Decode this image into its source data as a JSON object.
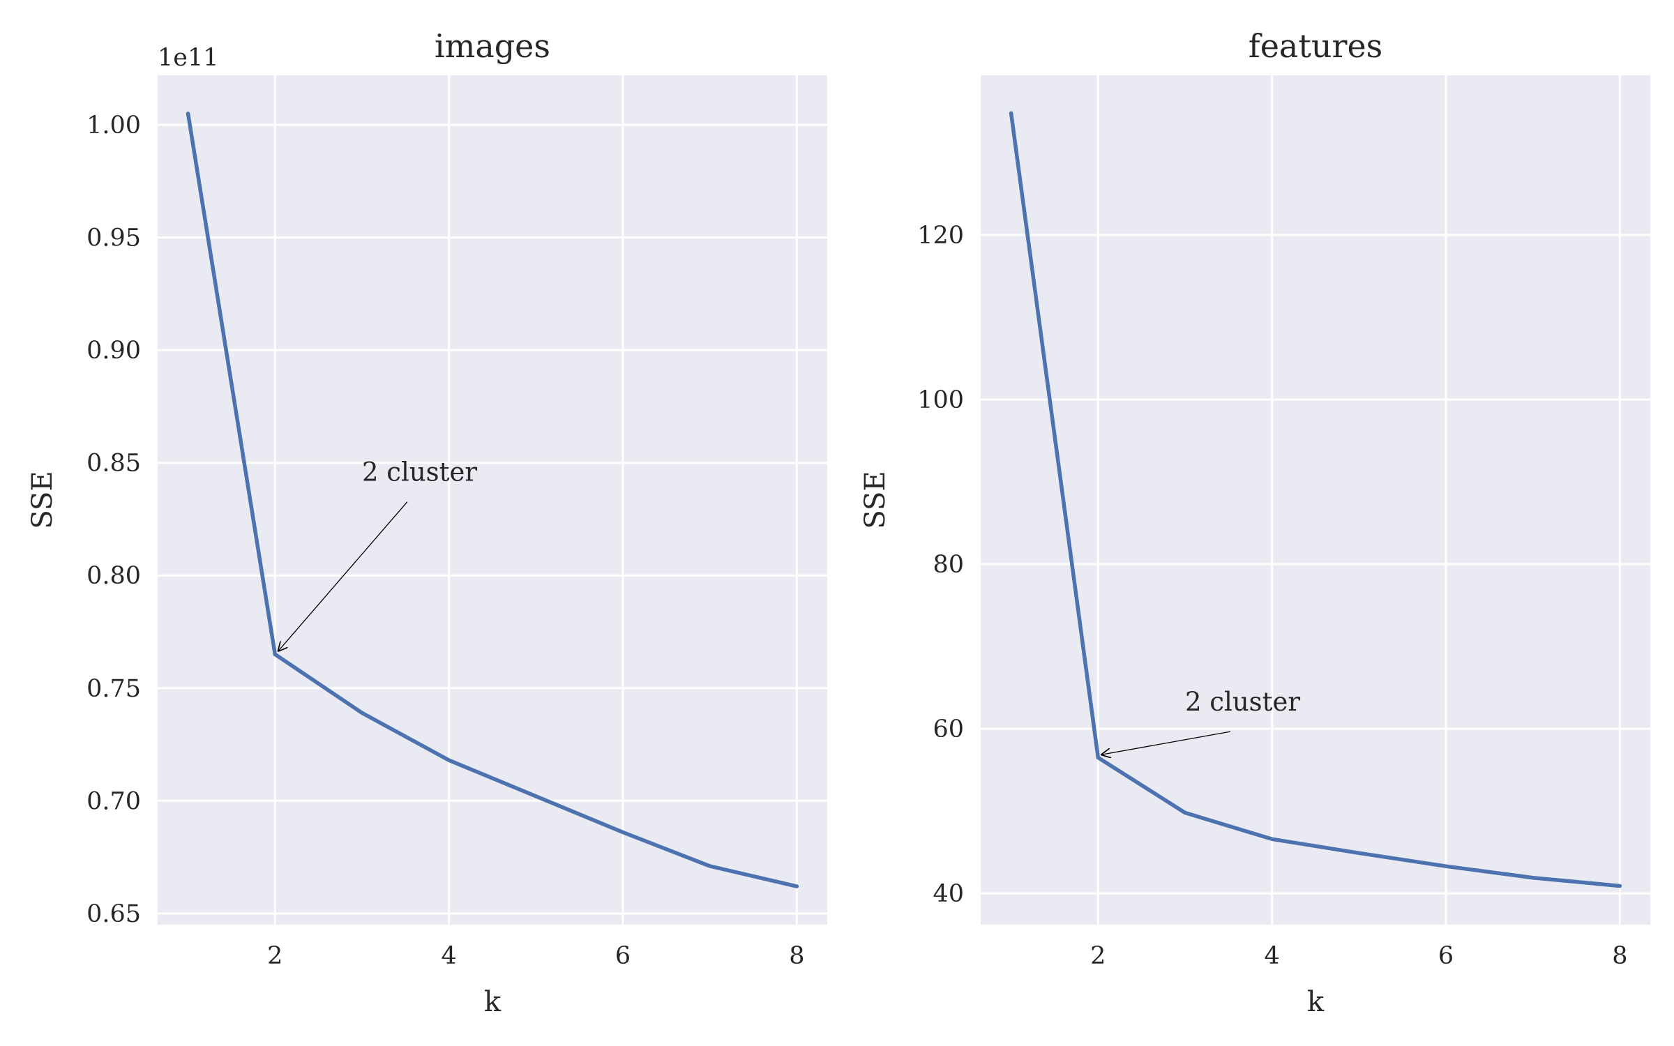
{
  "chart_data": [
    {
      "type": "line",
      "title": "images",
      "xlabel": "k",
      "ylabel": "SSE",
      "y_offset_label": "1e11",
      "x": [
        1,
        2,
        3,
        4,
        5,
        6,
        7,
        8
      ],
      "series": [
        {
          "name": "SSE",
          "color": "#4c72b0",
          "values": [
            1.005,
            0.765,
            0.739,
            0.718,
            0.702,
            0.686,
            0.671,
            0.662
          ]
        }
      ],
      "xlim": [
        0.65,
        8.35
      ],
      "ylim": [
        0.645,
        1.022
      ],
      "xticks": [
        2,
        4,
        6,
        8
      ],
      "xtick_labels": [
        "2",
        "4",
        "6",
        "8"
      ],
      "yticks": [
        0.65,
        0.7,
        0.75,
        0.8,
        0.85,
        0.9,
        0.95,
        1.0
      ],
      "ytick_labels": [
        "0.65",
        "0.70",
        "0.75",
        "0.80",
        "0.85",
        "0.90",
        "0.95",
        "1.00"
      ],
      "annotation": {
        "text": "2 cluster",
        "point": [
          2,
          0.765
        ],
        "text_at": [
          3,
          0.842
        ]
      }
    },
    {
      "type": "line",
      "title": "features",
      "xlabel": "k",
      "ylabel": "SSE",
      "x": [
        1,
        2,
        3,
        4,
        5,
        6,
        7,
        8
      ],
      "series": [
        {
          "name": "SSE",
          "color": "#4c72b0",
          "values": [
            134.8,
            56.5,
            49.8,
            46.6,
            44.9,
            43.3,
            41.9,
            40.9
          ]
        }
      ],
      "xlim": [
        0.65,
        8.35
      ],
      "ylim": [
        36.2,
        139.4
      ],
      "xticks": [
        2,
        4,
        6,
        8
      ],
      "xtick_labels": [
        "2",
        "4",
        "6",
        "8"
      ],
      "yticks": [
        40,
        60,
        80,
        100,
        120
      ],
      "ytick_labels": [
        "40",
        "60",
        "80",
        "100",
        "120"
      ],
      "annotation": {
        "text": "2 cluster",
        "point": [
          2,
          56.5
        ],
        "text_at": [
          3,
          62.2
        ]
      }
    }
  ],
  "style": {
    "axes_bg": "#eaeaf2",
    "grid": "#ffffff",
    "line": "#4c72b0",
    "text": "#262626"
  }
}
